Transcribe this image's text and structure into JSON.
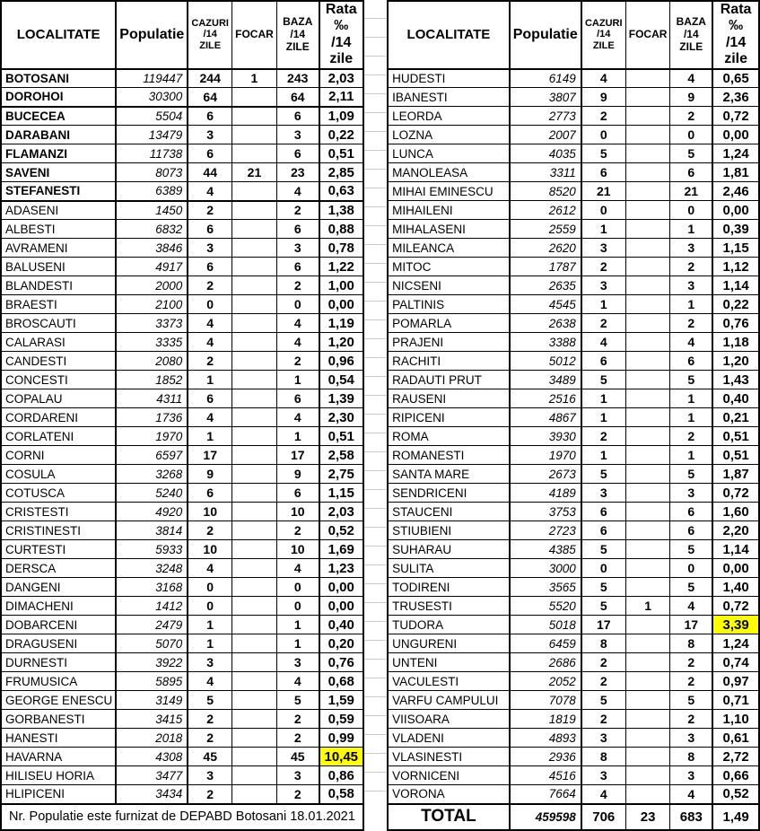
{
  "headers": {
    "localitate": "LOCALITATE",
    "populatie": "Populatie",
    "cazuri": "CAZURI\n/14 ZILE",
    "focar": "FOCAR",
    "baza": "BAZA /14\nZILE",
    "rata": "Rata ‰\n/14 zile"
  },
  "footer_note": "Nr. Populatie este furnizat de DEPABD Botosani 18.01.2021",
  "colors": {
    "highlight": "#FFFF00",
    "border": "#000000",
    "gridline": "#C9C9C9"
  },
  "left_table": {
    "rows": [
      {
        "loc": "BOTOSANI",
        "populatie": "119447",
        "cazuri": "244",
        "focar": "1",
        "baza": "243",
        "rata": "2,03",
        "bold": true
      },
      {
        "loc": "DOROHOI",
        "populatie": "30300",
        "cazuri": "64",
        "focar": "",
        "baza": "64",
        "rata": "2,11",
        "bold": true,
        "group_end": true
      },
      {
        "loc": "BUCECEA",
        "populatie": "5504",
        "cazuri": "6",
        "focar": "",
        "baza": "6",
        "rata": "1,09",
        "bold": true
      },
      {
        "loc": "DARABANI",
        "populatie": "13479",
        "cazuri": "3",
        "focar": "",
        "baza": "3",
        "rata": "0,22",
        "bold": true
      },
      {
        "loc": "FLAMANZI",
        "populatie": "11738",
        "cazuri": "6",
        "focar": "",
        "baza": "6",
        "rata": "0,51",
        "bold": true
      },
      {
        "loc": "SAVENI",
        "populatie": "8073",
        "cazuri": "44",
        "focar": "21",
        "baza": "23",
        "rata": "2,85",
        "bold": true
      },
      {
        "loc": "STEFANESTI",
        "populatie": "6389",
        "cazuri": "4",
        "focar": "",
        "baza": "4",
        "rata": "0,63",
        "bold": true,
        "group_end": true
      },
      {
        "loc": "ADASENI",
        "populatie": "1450",
        "cazuri": "2",
        "focar": "",
        "baza": "2",
        "rata": "1,38"
      },
      {
        "loc": "ALBESTI",
        "populatie": "6832",
        "cazuri": "6",
        "focar": "",
        "baza": "6",
        "rata": "0,88"
      },
      {
        "loc": "AVRAMENI",
        "populatie": "3846",
        "cazuri": "3",
        "focar": "",
        "baza": "3",
        "rata": "0,78"
      },
      {
        "loc": "BALUSENI",
        "populatie": "4917",
        "cazuri": "6",
        "focar": "",
        "baza": "6",
        "rata": "1,22"
      },
      {
        "loc": "BLANDESTI",
        "populatie": "2000",
        "cazuri": "2",
        "focar": "",
        "baza": "2",
        "rata": "1,00"
      },
      {
        "loc": "BRAESTI",
        "populatie": "2100",
        "cazuri": "0",
        "focar": "",
        "baza": "0",
        "rata": "0,00"
      },
      {
        "loc": "BROSCAUTI",
        "populatie": "3373",
        "cazuri": "4",
        "focar": "",
        "baza": "4",
        "rata": "1,19"
      },
      {
        "loc": "CALARASI",
        "populatie": "3335",
        "cazuri": "4",
        "focar": "",
        "baza": "4",
        "rata": "1,20"
      },
      {
        "loc": "CANDESTI",
        "populatie": "2080",
        "cazuri": "2",
        "focar": "",
        "baza": "2",
        "rata": "0,96"
      },
      {
        "loc": "CONCESTI",
        "populatie": "1852",
        "cazuri": "1",
        "focar": "",
        "baza": "1",
        "rata": "0,54"
      },
      {
        "loc": "COPALAU",
        "populatie": "4311",
        "cazuri": "6",
        "focar": "",
        "baza": "6",
        "rata": "1,39"
      },
      {
        "loc": "CORDARENI",
        "populatie": "1736",
        "cazuri": "4",
        "focar": "",
        "baza": "4",
        "rata": "2,30"
      },
      {
        "loc": "CORLATENI",
        "populatie": "1970",
        "cazuri": "1",
        "focar": "",
        "baza": "1",
        "rata": "0,51"
      },
      {
        "loc": "CORNI",
        "populatie": "6597",
        "cazuri": "17",
        "focar": "",
        "baza": "17",
        "rata": "2,58"
      },
      {
        "loc": "COSULA",
        "populatie": "3268",
        "cazuri": "9",
        "focar": "",
        "baza": "9",
        "rata": "2,75"
      },
      {
        "loc": "COTUSCA",
        "populatie": "5240",
        "cazuri": "6",
        "focar": "",
        "baza": "6",
        "rata": "1,15"
      },
      {
        "loc": "CRISTESTI",
        "populatie": "4920",
        "cazuri": "10",
        "focar": "",
        "baza": "10",
        "rata": "2,03"
      },
      {
        "loc": "CRISTINESTI",
        "populatie": "3814",
        "cazuri": "2",
        "focar": "",
        "baza": "2",
        "rata": "0,52"
      },
      {
        "loc": "CURTESTI",
        "populatie": "5933",
        "cazuri": "10",
        "focar": "",
        "baza": "10",
        "rata": "1,69"
      },
      {
        "loc": "DERSCA",
        "populatie": "3248",
        "cazuri": "4",
        "focar": "",
        "baza": "4",
        "rata": "1,23"
      },
      {
        "loc": "DANGENI",
        "populatie": "3168",
        "cazuri": "0",
        "focar": "",
        "baza": "0",
        "rata": "0,00"
      },
      {
        "loc": "DIMACHENI",
        "populatie": "1412",
        "cazuri": "0",
        "focar": "",
        "baza": "0",
        "rata": "0,00"
      },
      {
        "loc": "DOBARCENI",
        "populatie": "2479",
        "cazuri": "1",
        "focar": "",
        "baza": "1",
        "rata": "0,40"
      },
      {
        "loc": "DRAGUSENI",
        "populatie": "5070",
        "cazuri": "1",
        "focar": "",
        "baza": "1",
        "rata": "0,20"
      },
      {
        "loc": "DURNESTI",
        "populatie": "3922",
        "cazuri": "3",
        "focar": "",
        "baza": "3",
        "rata": "0,76"
      },
      {
        "loc": "FRUMUSICA",
        "populatie": "5895",
        "cazuri": "4",
        "focar": "",
        "baza": "4",
        "rata": "0,68"
      },
      {
        "loc": "GEORGE ENESCU",
        "populatie": "3149",
        "cazuri": "5",
        "focar": "",
        "baza": "5",
        "rata": "1,59"
      },
      {
        "loc": "GORBANESTI",
        "populatie": "3415",
        "cazuri": "2",
        "focar": "",
        "baza": "2",
        "rata": "0,59"
      },
      {
        "loc": "HANESTI",
        "populatie": "2018",
        "cazuri": "2",
        "focar": "",
        "baza": "2",
        "rata": "0,99"
      },
      {
        "loc": "HAVARNA",
        "populatie": "4308",
        "cazuri": "45",
        "focar": "",
        "baza": "45",
        "rata": "10,45",
        "hl": true
      },
      {
        "loc": "HILISEU HORIA",
        "populatie": "3477",
        "cazuri": "3",
        "focar": "",
        "baza": "3",
        "rata": "0,86"
      },
      {
        "loc": "HLIPICENI",
        "populatie": "3434",
        "cazuri": "2",
        "focar": "",
        "baza": "2",
        "rata": "0,58"
      }
    ]
  },
  "right_table": {
    "rows": [
      {
        "loc": "HUDESTI",
        "populatie": "6149",
        "cazuri": "4",
        "focar": "",
        "baza": "4",
        "rata": "0,65"
      },
      {
        "loc": "IBANESTI",
        "populatie": "3807",
        "cazuri": "9",
        "focar": "",
        "baza": "9",
        "rata": "2,36"
      },
      {
        "loc": "LEORDA",
        "populatie": "2773",
        "cazuri": "2",
        "focar": "",
        "baza": "2",
        "rata": "0,72"
      },
      {
        "loc": "LOZNA",
        "populatie": "2007",
        "cazuri": "0",
        "focar": "",
        "baza": "0",
        "rata": "0,00"
      },
      {
        "loc": "LUNCA",
        "populatie": "4035",
        "cazuri": "5",
        "focar": "",
        "baza": "5",
        "rata": "1,24"
      },
      {
        "loc": "MANOLEASA",
        "populatie": "3311",
        "cazuri": "6",
        "focar": "",
        "baza": "6",
        "rata": "1,81"
      },
      {
        "loc": "MIHAI EMINESCU",
        "populatie": "8520",
        "cazuri": "21",
        "focar": "",
        "baza": "21",
        "rata": "2,46"
      },
      {
        "loc": "MIHAILENI",
        "populatie": "2612",
        "cazuri": "0",
        "focar": "",
        "baza": "0",
        "rata": "0,00"
      },
      {
        "loc": "MIHALASENI",
        "populatie": "2559",
        "cazuri": "1",
        "focar": "",
        "baza": "1",
        "rata": "0,39"
      },
      {
        "loc": "MILEANCA",
        "populatie": "2620",
        "cazuri": "3",
        "focar": "",
        "baza": "3",
        "rata": "1,15"
      },
      {
        "loc": "MITOC",
        "populatie": "1787",
        "cazuri": "2",
        "focar": "",
        "baza": "2",
        "rata": "1,12"
      },
      {
        "loc": "NICSENI",
        "populatie": "2635",
        "cazuri": "3",
        "focar": "",
        "baza": "3",
        "rata": "1,14"
      },
      {
        "loc": "PALTINIS",
        "populatie": "4545",
        "cazuri": "1",
        "focar": "",
        "baza": "1",
        "rata": "0,22"
      },
      {
        "loc": "POMARLA",
        "populatie": "2638",
        "cazuri": "2",
        "focar": "",
        "baza": "2",
        "rata": "0,76"
      },
      {
        "loc": "PRAJENI",
        "populatie": "3388",
        "cazuri": "4",
        "focar": "",
        "baza": "4",
        "rata": "1,18"
      },
      {
        "loc": "RACHITI",
        "populatie": "5012",
        "cazuri": "6",
        "focar": "",
        "baza": "6",
        "rata": "1,20"
      },
      {
        "loc": "RADAUTI PRUT",
        "populatie": "3489",
        "cazuri": "5",
        "focar": "",
        "baza": "5",
        "rata": "1,43"
      },
      {
        "loc": "RAUSENI",
        "populatie": "2516",
        "cazuri": "1",
        "focar": "",
        "baza": "1",
        "rata": "0,40"
      },
      {
        "loc": "RIPICENI",
        "populatie": "4867",
        "cazuri": "1",
        "focar": "",
        "baza": "1",
        "rata": "0,21"
      },
      {
        "loc": "ROMA",
        "populatie": "3930",
        "cazuri": "2",
        "focar": "",
        "baza": "2",
        "rata": "0,51"
      },
      {
        "loc": "ROMANESTI",
        "populatie": "1970",
        "cazuri": "1",
        "focar": "",
        "baza": "1",
        "rata": "0,51"
      },
      {
        "loc": "SANTA MARE",
        "populatie": "2673",
        "cazuri": "5",
        "focar": "",
        "baza": "5",
        "rata": "1,87"
      },
      {
        "loc": "SENDRICENI",
        "populatie": "4189",
        "cazuri": "3",
        "focar": "",
        "baza": "3",
        "rata": "0,72"
      },
      {
        "loc": "STAUCENI",
        "populatie": "3753",
        "cazuri": "6",
        "focar": "",
        "baza": "6",
        "rata": "1,60"
      },
      {
        "loc": "STIUBIENI",
        "populatie": "2723",
        "cazuri": "6",
        "focar": "",
        "baza": "6",
        "rata": "2,20"
      },
      {
        "loc": "SUHARAU",
        "populatie": "4385",
        "cazuri": "5",
        "focar": "",
        "baza": "5",
        "rata": "1,14"
      },
      {
        "loc": "SULITA",
        "populatie": "3000",
        "cazuri": "0",
        "focar": "",
        "baza": "0",
        "rata": "0,00"
      },
      {
        "loc": "TODIRENI",
        "populatie": "3565",
        "cazuri": "5",
        "focar": "",
        "baza": "5",
        "rata": "1,40"
      },
      {
        "loc": "TRUSESTI",
        "populatie": "5520",
        "cazuri": "5",
        "focar": "1",
        "baza": "4",
        "rata": "0,72"
      },
      {
        "loc": "TUDORA",
        "populatie": "5018",
        "cazuri": "17",
        "focar": "",
        "baza": "17",
        "rata": "3,39",
        "hl": true
      },
      {
        "loc": "UNGURENI",
        "populatie": "6459",
        "cazuri": "8",
        "focar": "",
        "baza": "8",
        "rata": "1,24"
      },
      {
        "loc": "UNTENI",
        "populatie": "2686",
        "cazuri": "2",
        "focar": "",
        "baza": "2",
        "rata": "0,74"
      },
      {
        "loc": "VACULESTI",
        "populatie": "2052",
        "cazuri": "2",
        "focar": "",
        "baza": "2",
        "rata": "0,97"
      },
      {
        "loc": "VARFU CAMPULUI",
        "populatie": "7078",
        "cazuri": "5",
        "focar": "",
        "baza": "5",
        "rata": "0,71"
      },
      {
        "loc": "VIISOARA",
        "populatie": "1819",
        "cazuri": "2",
        "focar": "",
        "baza": "2",
        "rata": "1,10"
      },
      {
        "loc": "VLADENI",
        "populatie": "4893",
        "cazuri": "3",
        "focar": "",
        "baza": "3",
        "rata": "0,61"
      },
      {
        "loc": "VLASINESTI",
        "populatie": "2936",
        "cazuri": "8",
        "focar": "",
        "baza": "8",
        "rata": "2,72"
      },
      {
        "loc": "VORNICENI",
        "populatie": "4516",
        "cazuri": "3",
        "focar": "",
        "baza": "3",
        "rata": "0,66"
      },
      {
        "loc": "VORONA",
        "populatie": "7664",
        "cazuri": "4",
        "focar": "",
        "baza": "4",
        "rata": "0,52"
      }
    ],
    "total": {
      "label": "TOTAL",
      "populatie": "459598",
      "cazuri": "706",
      "focar": "23",
      "baza": "683",
      "rata": "1,49"
    }
  }
}
